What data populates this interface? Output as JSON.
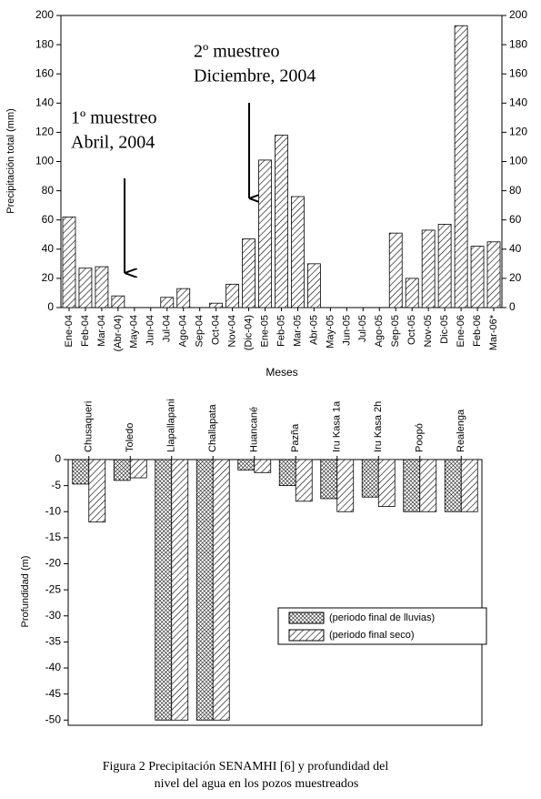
{
  "chart_data": [
    {
      "type": "bar",
      "y_label": "Precipitación total (mm)",
      "x_label": "Meses",
      "pattern": "hatch",
      "color": "#000000",
      "categories": [
        "Ene-04",
        "Feb-04",
        "Mar-04",
        "(Abr-04)",
        "May-04",
        "Jun-04",
        "Jul-04",
        "Ago-04",
        "Sep-04",
        "Oct-04",
        "Nov-04",
        "(Dic-04)",
        "Ene-05",
        "Feb-05",
        "Mar-05",
        "Abr-05",
        "May-05",
        "Jun-05",
        "Jul-05",
        "Ago-05",
        "Sep-05",
        "Oct-05",
        "Nov-05",
        "Dic-05",
        "Ene-06",
        "Feb-06",
        "Mar-06*"
      ],
      "values": [
        62,
        27,
        28,
        8,
        0,
        0,
        7,
        13,
        0,
        3,
        16,
        47,
        101,
        118,
        76,
        30,
        0,
        0,
        0,
        0,
        51,
        20,
        53,
        57,
        193,
        42,
        45
      ],
      "ylim": [
        0,
        200
      ],
      "yticks": [
        0,
        20,
        40,
        60,
        80,
        100,
        120,
        140,
        160,
        180,
        200
      ],
      "y2lim": [
        0,
        200
      ],
      "y2ticks": [
        0,
        20,
        40,
        60,
        80,
        100,
        120,
        140,
        160,
        180,
        200
      ],
      "annotations": [
        [
          "1º muestreo",
          "Abril, 2004"
        ],
        [
          "2º muestreo",
          "Diciembre, 2004"
        ]
      ]
    },
    {
      "type": "grouped-bar",
      "y_label": "Profundidad (m)",
      "legend": "center right",
      "categories": [
        "Chusaqueri",
        "Toledo",
        "Llapallapani",
        "Challapata",
        "Huancané",
        "Pazña",
        "Iru Kasa 1a",
        "Iru Kasa 2h",
        "Poopó",
        "Realenga"
      ],
      "series": [
        {
          "name": "(periodo final de lluvias)",
          "color": "#000000",
          "pattern": "crosshatch",
          "values": [
            -4.7,
            -4,
            -50,
            -50,
            -2,
            -5,
            -7.5,
            -7.2,
            -10,
            -10
          ]
        },
        {
          "name": "(periodo final seco)",
          "color": "#000000",
          "pattern": "hatch",
          "values": [
            -12,
            -3.5,
            -50,
            -50,
            -2.5,
            -8,
            -10,
            -9,
            -10,
            -10
          ]
        }
      ],
      "ylim": [
        -51,
        0
      ],
      "yticks": [
        0,
        -5,
        -10,
        -15,
        -20,
        -25,
        -30,
        -35,
        -40,
        -45,
        -50
      ]
    }
  ],
  "caption": [
    "Figura 2  Precipitación SENAMHI [6] y profundidad del",
    "nivel del agua en los pozos muestreados"
  ]
}
